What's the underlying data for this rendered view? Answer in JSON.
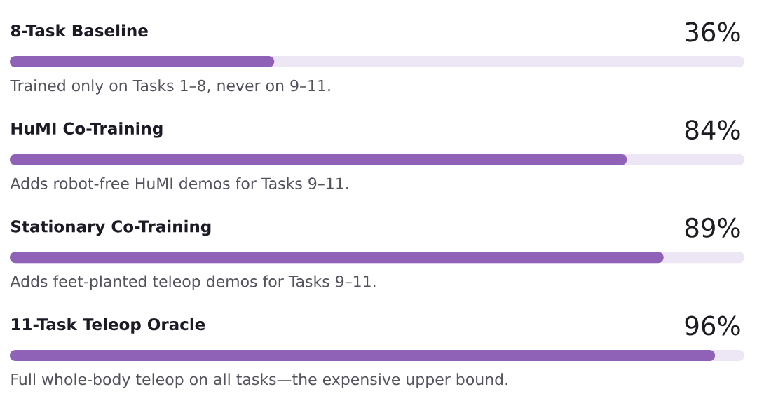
{
  "chart_data": {
    "type": "bar",
    "orientation": "horizontal",
    "categories": [
      "8-Task Baseline",
      "HuMI Co-Training",
      "Stationary Co-Training",
      "11-Task Teleop Oracle"
    ],
    "values": [
      36,
      84,
      89,
      96
    ],
    "value_labels": [
      "36%",
      "84%",
      "89%",
      "96%"
    ],
    "color": "#8f62b8",
    "xlim": [
      0,
      100
    ],
    "tick_labels": "y",
    "annotations": [
      "Trained only on Tasks 1–8, never on 9–11.",
      "Adds robot-free HuMI demos for Tasks 9–11.",
      "Adds feet-planted teleop demos for Tasks 9–11.",
      "Full whole-body teleop on all tasks—the expensive upper bound."
    ]
  }
}
